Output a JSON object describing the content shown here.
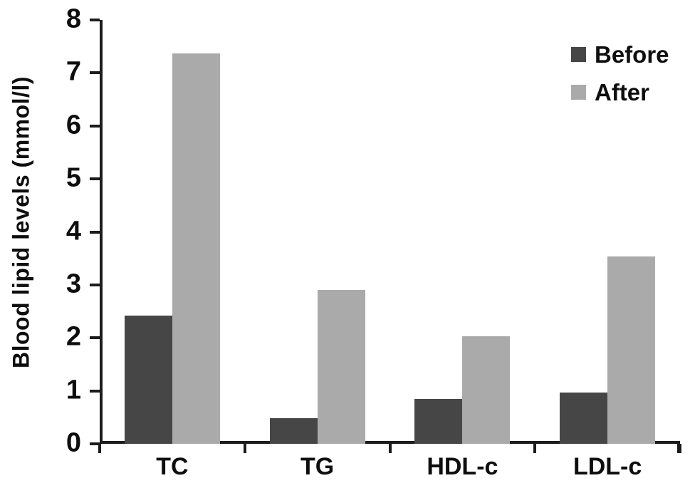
{
  "chart_data": {
    "type": "bar",
    "title": "",
    "xlabel": "",
    "ylabel": "Blood lipid levels (mmol/l)",
    "ylim": [
      0,
      8
    ],
    "ytick_step": 1,
    "ytick_labels": [
      "0",
      "1",
      "2",
      "3",
      "4",
      "5",
      "6",
      "7",
      "8"
    ],
    "grid": false,
    "legend_position": "top-right",
    "background_color": "#ffffff",
    "axis_color": "#1c1c1c",
    "text_color": "#0e0e0e",
    "categories": [
      "TC",
      "TG",
      "HDL-c",
      "LDL-c"
    ],
    "series": [
      {
        "name": "Before",
        "color": "#464646",
        "values": [
          2.42,
          0.48,
          0.85,
          0.97
        ]
      },
      {
        "name": "After",
        "color": "#aaaaaa",
        "values": [
          7.37,
          2.91,
          2.03,
          3.53
        ]
      }
    ]
  }
}
